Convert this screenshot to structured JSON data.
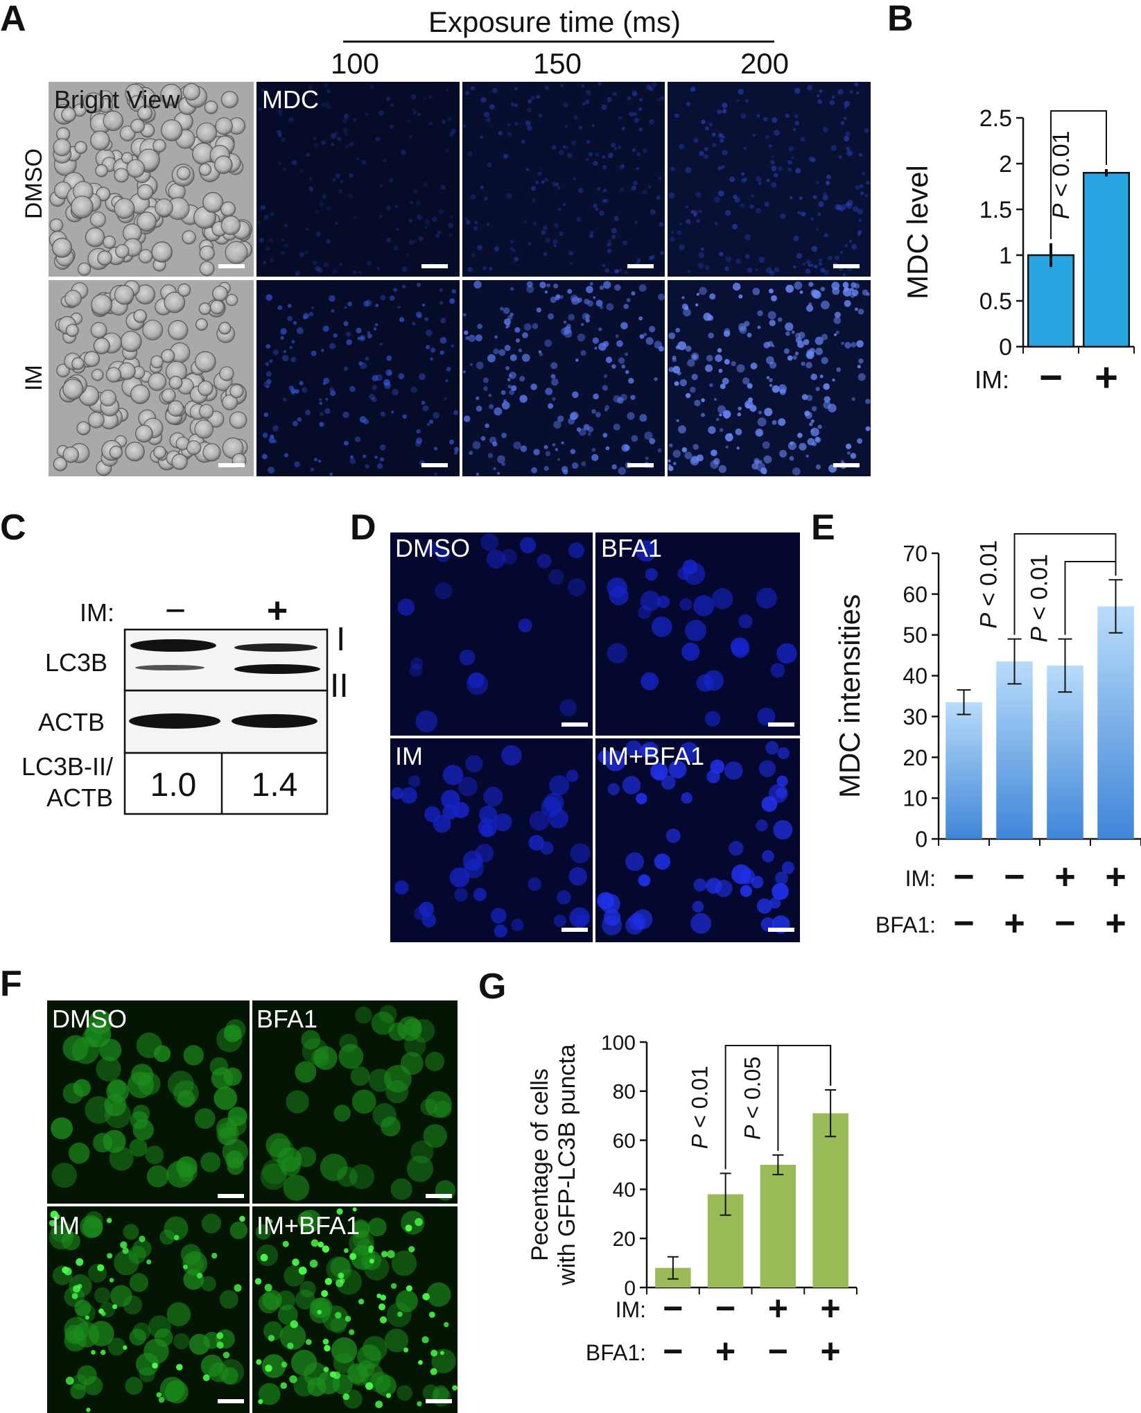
{
  "panel_letters": {
    "A": "A",
    "B": "B",
    "C": "C",
    "D": "D",
    "E": "E",
    "F": "F",
    "G": "G"
  },
  "panel_a": {
    "header": "Exposure time (ms)",
    "exposures": [
      "100",
      "150",
      "200"
    ],
    "row_labels": [
      "DMSO",
      "IM"
    ],
    "bright_label": "Bright View",
    "channel_label": "MDC",
    "colors": {
      "fluor_bg": "#060c28",
      "dot": "#2c46c8",
      "bright_bg": "#a9a9a9"
    }
  },
  "panel_c": {
    "im_label": "IM:",
    "im_signs": [
      "−",
      "+"
    ],
    "lc3b_label": "LC3B",
    "actb_label": "ACTB",
    "band_labels": [
      "I",
      "II"
    ],
    "ratio_label_lines": [
      "LC3B-II/",
      "ACTB"
    ],
    "ratios": [
      "1.0",
      "1.4"
    ]
  },
  "panel_d": {
    "labels": [
      "DMSO",
      "BFA1",
      "IM",
      "IM+BFA1"
    ],
    "colors": {
      "bg": "#05082e",
      "dot": "#1624c8"
    }
  },
  "panel_f": {
    "labels": [
      "DMSO",
      "BFA1",
      "IM",
      "IM+BFA1"
    ],
    "colors": {
      "bg": "#041504",
      "dot": "#1c8e1c"
    }
  },
  "chart_data": [
    {
      "panel": "B",
      "type": "bar",
      "categories": [
        "−",
        "+"
      ],
      "values": [
        1.0,
        1.9
      ],
      "errors": [
        0.13,
        0.04
      ],
      "ylabel": "MDC level",
      "ylim": [
        0,
        2.5
      ],
      "yticks": [
        "0",
        "0.5",
        "1",
        "1.5",
        "2",
        "2.5"
      ],
      "x_row_labels": [
        "IM:"
      ],
      "x_rows": [
        [
          "−",
          "+"
        ]
      ],
      "brackets": [
        {
          "from": 0,
          "to": 1,
          "label": "P < 0.01"
        }
      ],
      "color": "#29a6e2"
    },
    {
      "panel": "E",
      "type": "bar",
      "categories": [
        "1",
        "2",
        "3",
        "4"
      ],
      "values": [
        33.5,
        43.5,
        42.5,
        57
      ],
      "errors": [
        3,
        5.5,
        6.5,
        6.5
      ],
      "ylabel": "MDC intensities",
      "ylim": [
        0,
        70
      ],
      "yticks": [
        "0",
        "10",
        "20",
        "30",
        "40",
        "50",
        "60",
        "70"
      ],
      "x_row_labels": [
        "IM:",
        "BFA1:"
      ],
      "x_rows": [
        [
          "−",
          "−",
          "+",
          "+"
        ],
        [
          "−",
          "+",
          "−",
          "+"
        ]
      ],
      "brackets": [
        {
          "from": 1,
          "to": 3,
          "label": "P < 0.01"
        },
        {
          "from": 2,
          "to": 3,
          "label": "P < 0.01"
        }
      ],
      "color": "#6aabe8"
    },
    {
      "panel": "G",
      "type": "bar",
      "categories": [
        "1",
        "2",
        "3",
        "4"
      ],
      "values": [
        8,
        38,
        50,
        71
      ],
      "errors": [
        4.5,
        8.5,
        4,
        9.5
      ],
      "ylabel_lines": [
        "Pecentage of cells",
        "with GFP-LC3B puncta"
      ],
      "ylim": [
        0,
        100
      ],
      "yticks": [
        "0",
        "20",
        "40",
        "60",
        "80",
        "100"
      ],
      "x_row_labels": [
        "IM:",
        "BFA1:"
      ],
      "x_rows": [
        [
          "−",
          "−",
          "+",
          "+"
        ],
        [
          "−",
          "+",
          "−",
          "+"
        ]
      ],
      "brackets": [
        {
          "from": 1,
          "to": 3,
          "label": "P < 0.01"
        },
        {
          "from": 2,
          "to": 3,
          "label": "P < 0.05"
        }
      ],
      "color": "#9bbb59"
    }
  ]
}
